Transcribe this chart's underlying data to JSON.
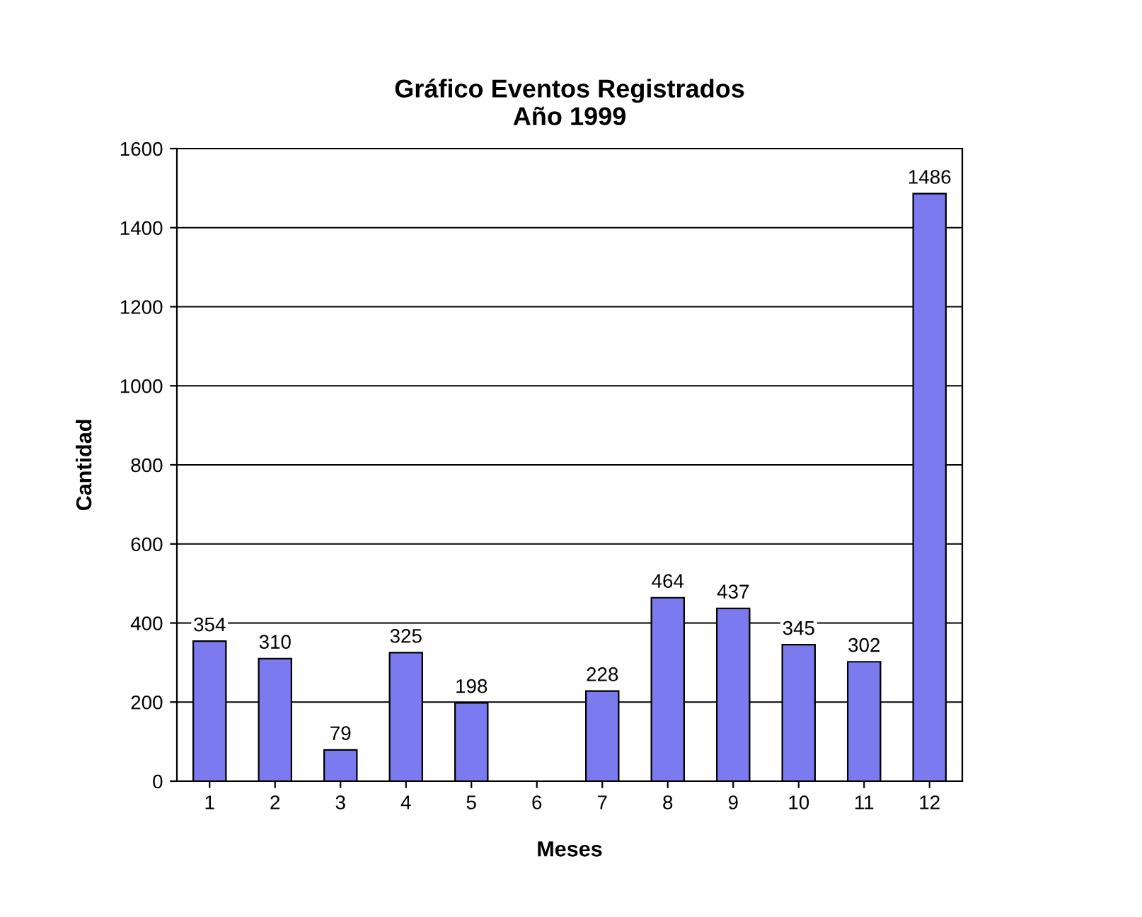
{
  "chart_data": {
    "type": "bar",
    "title": "Gráfico Eventos Registrados\nAño 1999",
    "xlabel": "Meses",
    "ylabel": "Cantidad",
    "categories": [
      "1",
      "2",
      "3",
      "4",
      "5",
      "6",
      "7",
      "8",
      "9",
      "10",
      "11",
      "12"
    ],
    "values": [
      354,
      310,
      79,
      325,
      198,
      null,
      228,
      464,
      437,
      345,
      302,
      1486
    ],
    "color": "#7b7bef",
    "ylim": [
      0,
      1600
    ],
    "yticks": [
      0,
      200,
      400,
      600,
      800,
      1000,
      1200,
      1400,
      1600
    ],
    "grid": "y",
    "data_labels": true
  }
}
